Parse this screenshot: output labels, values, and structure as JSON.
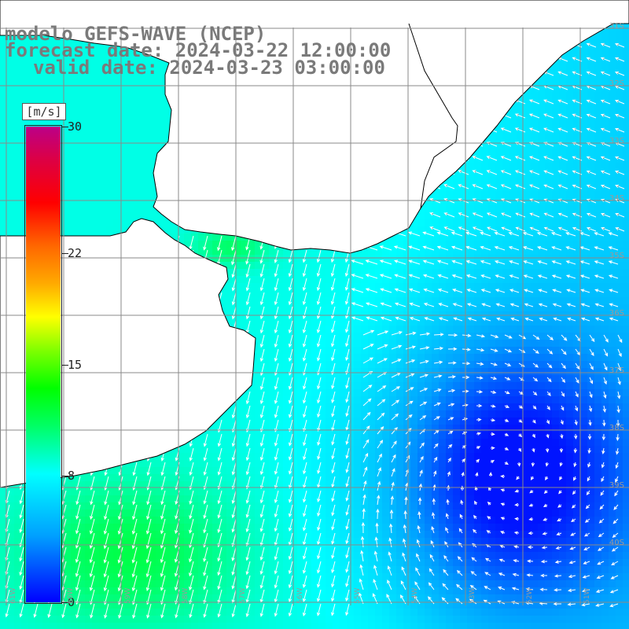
{
  "title": {
    "line1": "modelo GEFS-WAVE (NCEP)",
    "line2": "forecast date: 2024-03-22 12:00:00",
    "line3": "valid date: 2024-03-23 03:00:00"
  },
  "colorbar": {
    "unit": "[m/s]",
    "ticks": [
      "30",
      "22",
      "15",
      "8",
      "0"
    ],
    "tick_values": [
      30,
      22,
      15,
      8,
      0
    ]
  },
  "lat_labels": [
    "31S",
    "32S",
    "33S",
    "34S",
    "35S",
    "36S",
    "37S",
    "38S",
    "39S",
    "40S"
  ],
  "lon_labels": [
    "61W",
    "60W",
    "59W",
    "58W",
    "57W",
    "56W",
    "55W",
    "54W",
    "53W",
    "52W",
    "51W"
  ],
  "colors": {
    "land": "#ffffff",
    "coast": "#000000",
    "grid": "#888888",
    "arrows": "#ffffff",
    "title": "#7a7a7a"
  },
  "map": {
    "field": "wind speed and direction",
    "region": "Rio de la Plata / Uruguay / Buenos Aires coast, South Atlantic",
    "wind_max_area_speed_ms": 11,
    "wind_min_area_speed_ms": 1
  }
}
